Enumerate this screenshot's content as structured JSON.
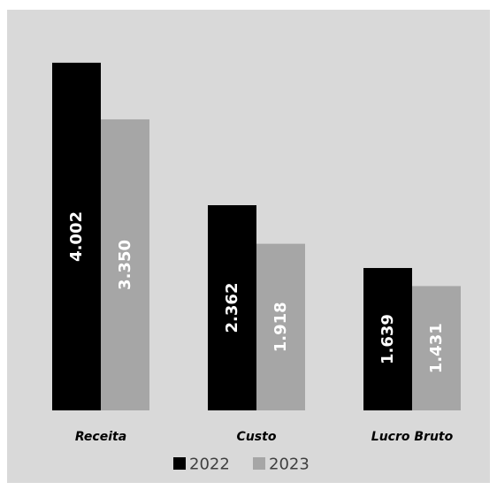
{
  "chart_data": {
    "type": "bar",
    "categories": [
      "Receita",
      "Custo",
      "Lucro Bruto"
    ],
    "series": [
      {
        "name": "2022",
        "values": [
          4002,
          2362,
          1639
        ],
        "labels": [
          "4.002",
          "2.362",
          "1.639"
        ],
        "color": "#000000"
      },
      {
        "name": "2023",
        "values": [
          3350,
          1918,
          1431
        ],
        "labels": [
          "3.350",
          "1.918",
          "1.431"
        ],
        "color": "#a6a6a6"
      }
    ],
    "title": "",
    "xlabel": "",
    "ylabel": "",
    "ylim": [
      0,
      4500
    ],
    "legend_position": "bottom",
    "grid": false,
    "background": "#d9d9d9"
  }
}
